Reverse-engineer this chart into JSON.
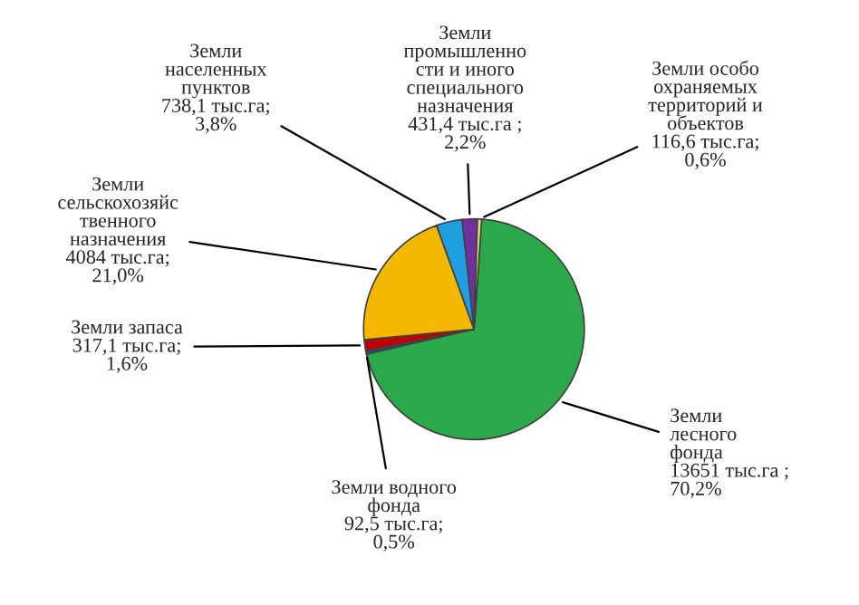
{
  "chart_data": {
    "type": "pie",
    "categories": [
      "Земли\nлесного\nфонда",
      "Земли водного\nфонда",
      "Земли запаса",
      "Земли\nсельскохозяйс\nтвенного\nназначения",
      "Земли\nнаселенных\nпунктов",
      "Земли\nпромышленно\nсти и иного\nспециального\nназначения",
      "Земли особо\nохраняемых\nтерриторий и\nобъектов"
    ],
    "values": [
      13651,
      92.5,
      317.1,
      4084,
      738.1,
      431.4,
      116.6
    ],
    "value_labels": [
      "13651 тыс.га ;\n70,2%",
      "92,5 тыс.га;\n0,5%",
      "317,1 тыс.га;\n1,6%",
      "4084 тыс.га;\n21,0%",
      "738,1 тыс.га;\n3,8%",
      "431,4 тыс.га ;\n2,2%",
      "116,6 тыс.га;\n0,6%"
    ],
    "colors": [
      "#2aa84a",
      "#1f4e79",
      "#c00000",
      "#f5b800",
      "#1ea0e0",
      "#7030a0",
      "#e8e070"
    ],
    "legend": false
  }
}
